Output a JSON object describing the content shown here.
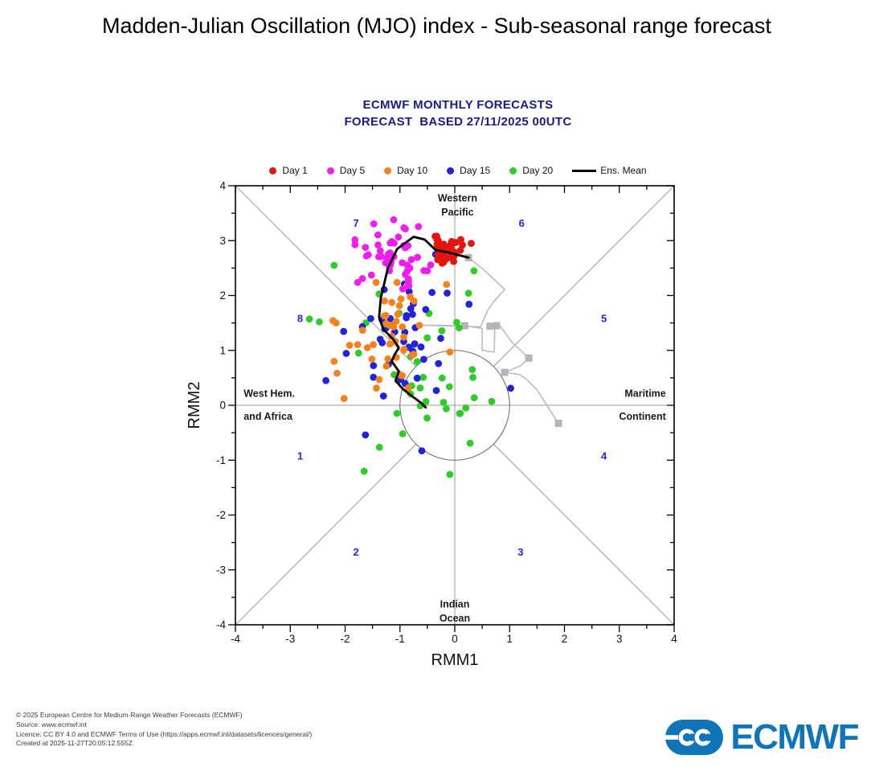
{
  "page": {
    "title": "Madden-Julian Oscillation (MJO) index - Sub-seasonal range forecast"
  },
  "chart": {
    "header_line1": "ECMWF MONTHLY FORECASTS",
    "header_line2": "FORECAST  BASED 27/11/2025 00UTC",
    "header_color": "#1b1b8a"
  },
  "legend": {
    "ens_mean_label": "Ens. Mean"
  },
  "chart_data": {
    "type": "scatter",
    "title": "ECMWF MONTHLY FORECASTS",
    "subtitle": "FORECAST  BASED 27/11/2025 00UTC",
    "xlabel": "RMM1",
    "ylabel": "RMM2",
    "xlim": [
      -4,
      4
    ],
    "ylim": [
      -4,
      4
    ],
    "tick_step": 1,
    "minor_tick_step": 0.5,
    "grid": false,
    "legend_position": "top",
    "unit_circle_radius": 1,
    "phase_labels": [
      {
        "n": "1",
        "x": -2.82,
        "y": -0.92
      },
      {
        "n": "2",
        "x": -1.8,
        "y": -2.67
      },
      {
        "n": "3",
        "x": 1.2,
        "y": -2.67
      },
      {
        "n": "4",
        "x": 2.72,
        "y": -0.92
      },
      {
        "n": "5",
        "x": 2.72,
        "y": 1.58
      },
      {
        "n": "6",
        "x": 1.22,
        "y": 3.32
      },
      {
        "n": "7",
        "x": -1.8,
        "y": 3.32
      },
      {
        "n": "8",
        "x": -2.82,
        "y": 1.58
      }
    ],
    "phase_label_color": "#2323e6",
    "region_labels": [
      {
        "name": "western-pacific",
        "lines": [
          "Western",
          "Pacific"
        ],
        "x": 0.05,
        "y": [
          3.78,
          3.52
        ],
        "anchor": "middle"
      },
      {
        "name": "indian-ocean",
        "lines": [
          "Indian",
          "Ocean"
        ],
        "x": 0.0,
        "y": [
          -3.62,
          -3.88
        ],
        "anchor": "middle"
      },
      {
        "name": "west-hem-africa",
        "lines": [
          "West Hem.",
          "and Africa"
        ],
        "x": -3.85,
        "y": [
          0.22,
          -0.2
        ],
        "anchor": "start"
      },
      {
        "name": "maritime-continent",
        "lines": [
          "Maritime",
          "Continent"
        ],
        "x": 3.85,
        "y": [
          0.22,
          -0.2
        ],
        "anchor": "end"
      }
    ],
    "series": [
      {
        "name": "Day 1",
        "color": "#e3150f",
        "seed": 11,
        "n": 48,
        "cx": -0.16,
        "cy": 2.83,
        "sx": 0.13,
        "sy": 0.11,
        "outliers": [
          [
            0.11,
            3.02
          ],
          [
            -0.02,
            2.62
          ],
          [
            0.3,
            2.95
          ]
        ]
      },
      {
        "name": "Day 5",
        "color": "#ee1fee",
        "seed": 22,
        "n": 49,
        "cx": -1.13,
        "cy": 2.82,
        "sx": 0.3,
        "sy": 0.28,
        "outliers": [
          [
            -0.95,
            2.12
          ],
          [
            -1.52,
            2.37
          ],
          [
            -0.5,
            2.45
          ]
        ]
      },
      {
        "name": "Day 10",
        "color": "#f5821f",
        "seed": 33,
        "n": 48,
        "cx": -1.25,
        "cy": 1.18,
        "sx": 0.44,
        "sy": 0.46,
        "outliers": [
          [
            -0.15,
            2.2
          ],
          [
            -0.09,
            0.97
          ],
          [
            -2.2,
            0.8
          ]
        ]
      },
      {
        "name": "Day 15",
        "color": "#2222dd",
        "seed": 44,
        "n": 46,
        "cx": -0.95,
        "cy": 1.22,
        "sx": 0.56,
        "sy": 0.62,
        "outliers": [
          [
            1.02,
            0.31
          ],
          [
            0.26,
            1.84
          ],
          [
            -2.35,
            0.45
          ],
          [
            -0.6,
            -0.83
          ],
          [
            -1.63,
            -0.54
          ],
          [
            -0.35,
            2.75
          ]
        ]
      },
      {
        "name": "Day 20",
        "color": "#2ecc26",
        "seed": 55,
        "n": 45,
        "cx": -0.8,
        "cy": 0.5,
        "sx": 0.64,
        "sy": 0.74,
        "outliers": [
          [
            -2.2,
            2.55
          ],
          [
            -2.65,
            1.57
          ],
          [
            -2.47,
            1.52
          ],
          [
            0.35,
            2.45
          ],
          [
            -0.09,
            -1.26
          ],
          [
            0.28,
            -0.69
          ],
          [
            0.32,
            0.65
          ],
          [
            0.2,
            -0.05
          ]
        ]
      }
    ],
    "ens_mean": {
      "label": "Ens. Mean",
      "color": "#000000",
      "points": [
        [
          0.25,
          2.69
        ],
        [
          -0.1,
          2.78
        ],
        [
          -0.35,
          2.83
        ],
        [
          -0.55,
          3.02
        ],
        [
          -0.75,
          3.07
        ],
        [
          -1.05,
          2.85
        ],
        [
          -1.22,
          2.5
        ],
        [
          -1.35,
          1.95
        ],
        [
          -1.38,
          1.6
        ],
        [
          -1.3,
          1.38
        ],
        [
          -1.12,
          1.2
        ],
        [
          -1.02,
          1.05
        ],
        [
          -1.1,
          0.92
        ],
        [
          -1.15,
          0.8
        ],
        [
          -1.02,
          0.62
        ],
        [
          -1.08,
          0.45
        ],
        [
          -0.95,
          0.3
        ],
        [
          -0.8,
          0.18
        ],
        [
          -0.62,
          0.05
        ],
        [
          -0.53,
          -0.04
        ]
      ]
    },
    "observed_trajectory": {
      "color": "#bcbcbc",
      "points": [
        [
          0.25,
          2.69
        ],
        [
          0.55,
          2.45
        ],
        [
          0.91,
          2.11
        ],
        [
          0.72,
          1.9
        ],
        [
          0.6,
          1.73
        ],
        [
          0.47,
          1.43
        ],
        [
          -0.7,
          1.46
        ],
        [
          0.18,
          1.45
        ],
        [
          0.5,
          1.4
        ],
        [
          0.5,
          1.0
        ],
        [
          0.72,
          0.97
        ],
        [
          0.73,
          1.42
        ],
        [
          0.64,
          1.44
        ],
        [
          0.76,
          1.45
        ],
        [
          0.83,
          1.44
        ],
        [
          1.05,
          1.14
        ],
        [
          1.35,
          0.86
        ],
        [
          1.2,
          0.72
        ],
        [
          0.91,
          0.6
        ],
        [
          1.18,
          0.56
        ],
        [
          1.3,
          0.48
        ],
        [
          1.5,
          0.28
        ],
        [
          1.89,
          -0.33
        ]
      ],
      "squares": [
        [
          0.25,
          2.69
        ],
        [
          0.18,
          1.45
        ],
        [
          0.64,
          1.44
        ],
        [
          0.76,
          1.45
        ],
        [
          1.35,
          0.86
        ],
        [
          0.91,
          0.6
        ],
        [
          1.89,
          -0.33
        ]
      ]
    }
  },
  "footer": {
    "lines": [
      "© 2025 European Centre for Medium-Range Weather Forecasts (ECMWF)",
      "Source: www.ecmwf.int",
      "Licence: CC BY 4.0 and ECMWF Terms of Use (https://apps.ecmwf.int/datasets/licences/general/)",
      "Created at 2025-11-27T20:05:12.555Z"
    ]
  },
  "logo": {
    "text": "ECMWF",
    "color": "#0f74b8"
  }
}
